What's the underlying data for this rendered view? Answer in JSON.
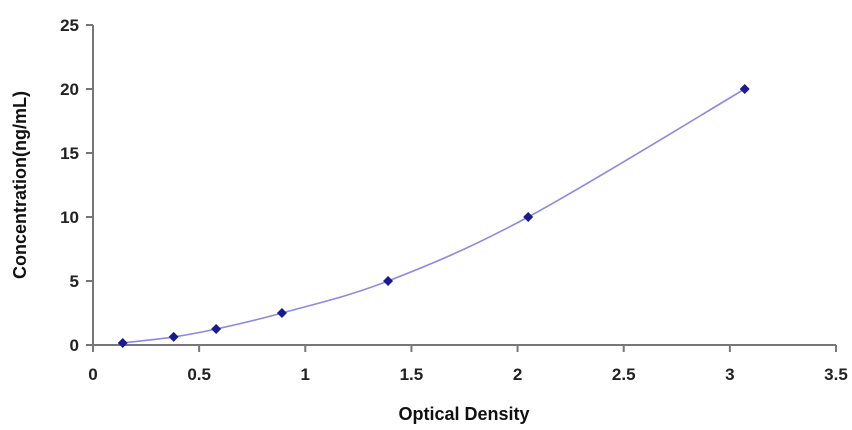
{
  "chart_data": {
    "type": "scatter",
    "title": "",
    "xlabel": "Optical Density",
    "ylabel": "Concentration(ng/mL)",
    "xlim": [
      0,
      3.5
    ],
    "ylim": [
      0,
      25
    ],
    "xticks": [
      0,
      0.5,
      1,
      1.5,
      2,
      2.5,
      3,
      3.5
    ],
    "yticks": [
      0,
      5,
      10,
      15,
      20,
      25
    ],
    "xtick_labels": [
      "0",
      "0.5",
      "1",
      "1.5",
      "2",
      "2.5",
      "3",
      "3.5"
    ],
    "ytick_labels": [
      "0",
      "5",
      "10",
      "15",
      "20",
      "25"
    ],
    "grid": false,
    "legend": "none",
    "series": [
      {
        "x": [
          0.14,
          0.38,
          0.58,
          0.89,
          1.39,
          2.05,
          3.07
        ],
        "y": [
          0.16,
          0.63,
          1.25,
          2.5,
          5,
          10,
          20
        ],
        "marker": "diamond",
        "marker_color": "#1a1a8c",
        "line": "smooth",
        "line_color": "#8a8ae0"
      }
    ]
  }
}
